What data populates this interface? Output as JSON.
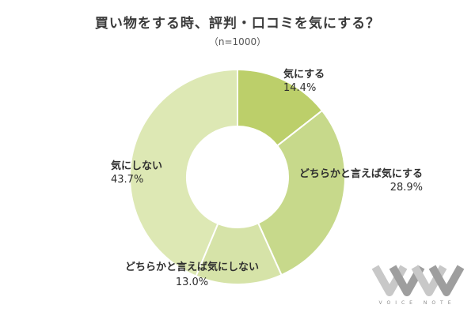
{
  "title": "買い物をする時、評判・口コミを気にする？",
  "subtitle": "（n=1000）",
  "chart_data": {
    "type": "pie",
    "donut": true,
    "legend": "none",
    "slices": [
      {
        "label": "気にする",
        "value": 14.4,
        "value_text": "14.4%",
        "color": "#bccf6a"
      },
      {
        "label": "どちらかと言えば気にする",
        "value": 28.9,
        "value_text": "28.9%",
        "color": "#c7d98b"
      },
      {
        "label": "どちらかと言えば気にしない",
        "value": 13.0,
        "value_text": "13.0%",
        "color": "#d6e3a8"
      },
      {
        "label": "気にしない",
        "value": 43.7,
        "value_text": "43.7%",
        "color": "#dde8b4"
      }
    ]
  },
  "watermark": {
    "text": "VOICE NOTE",
    "colors": [
      "#c8c8c8",
      "#9e9e9e"
    ]
  }
}
